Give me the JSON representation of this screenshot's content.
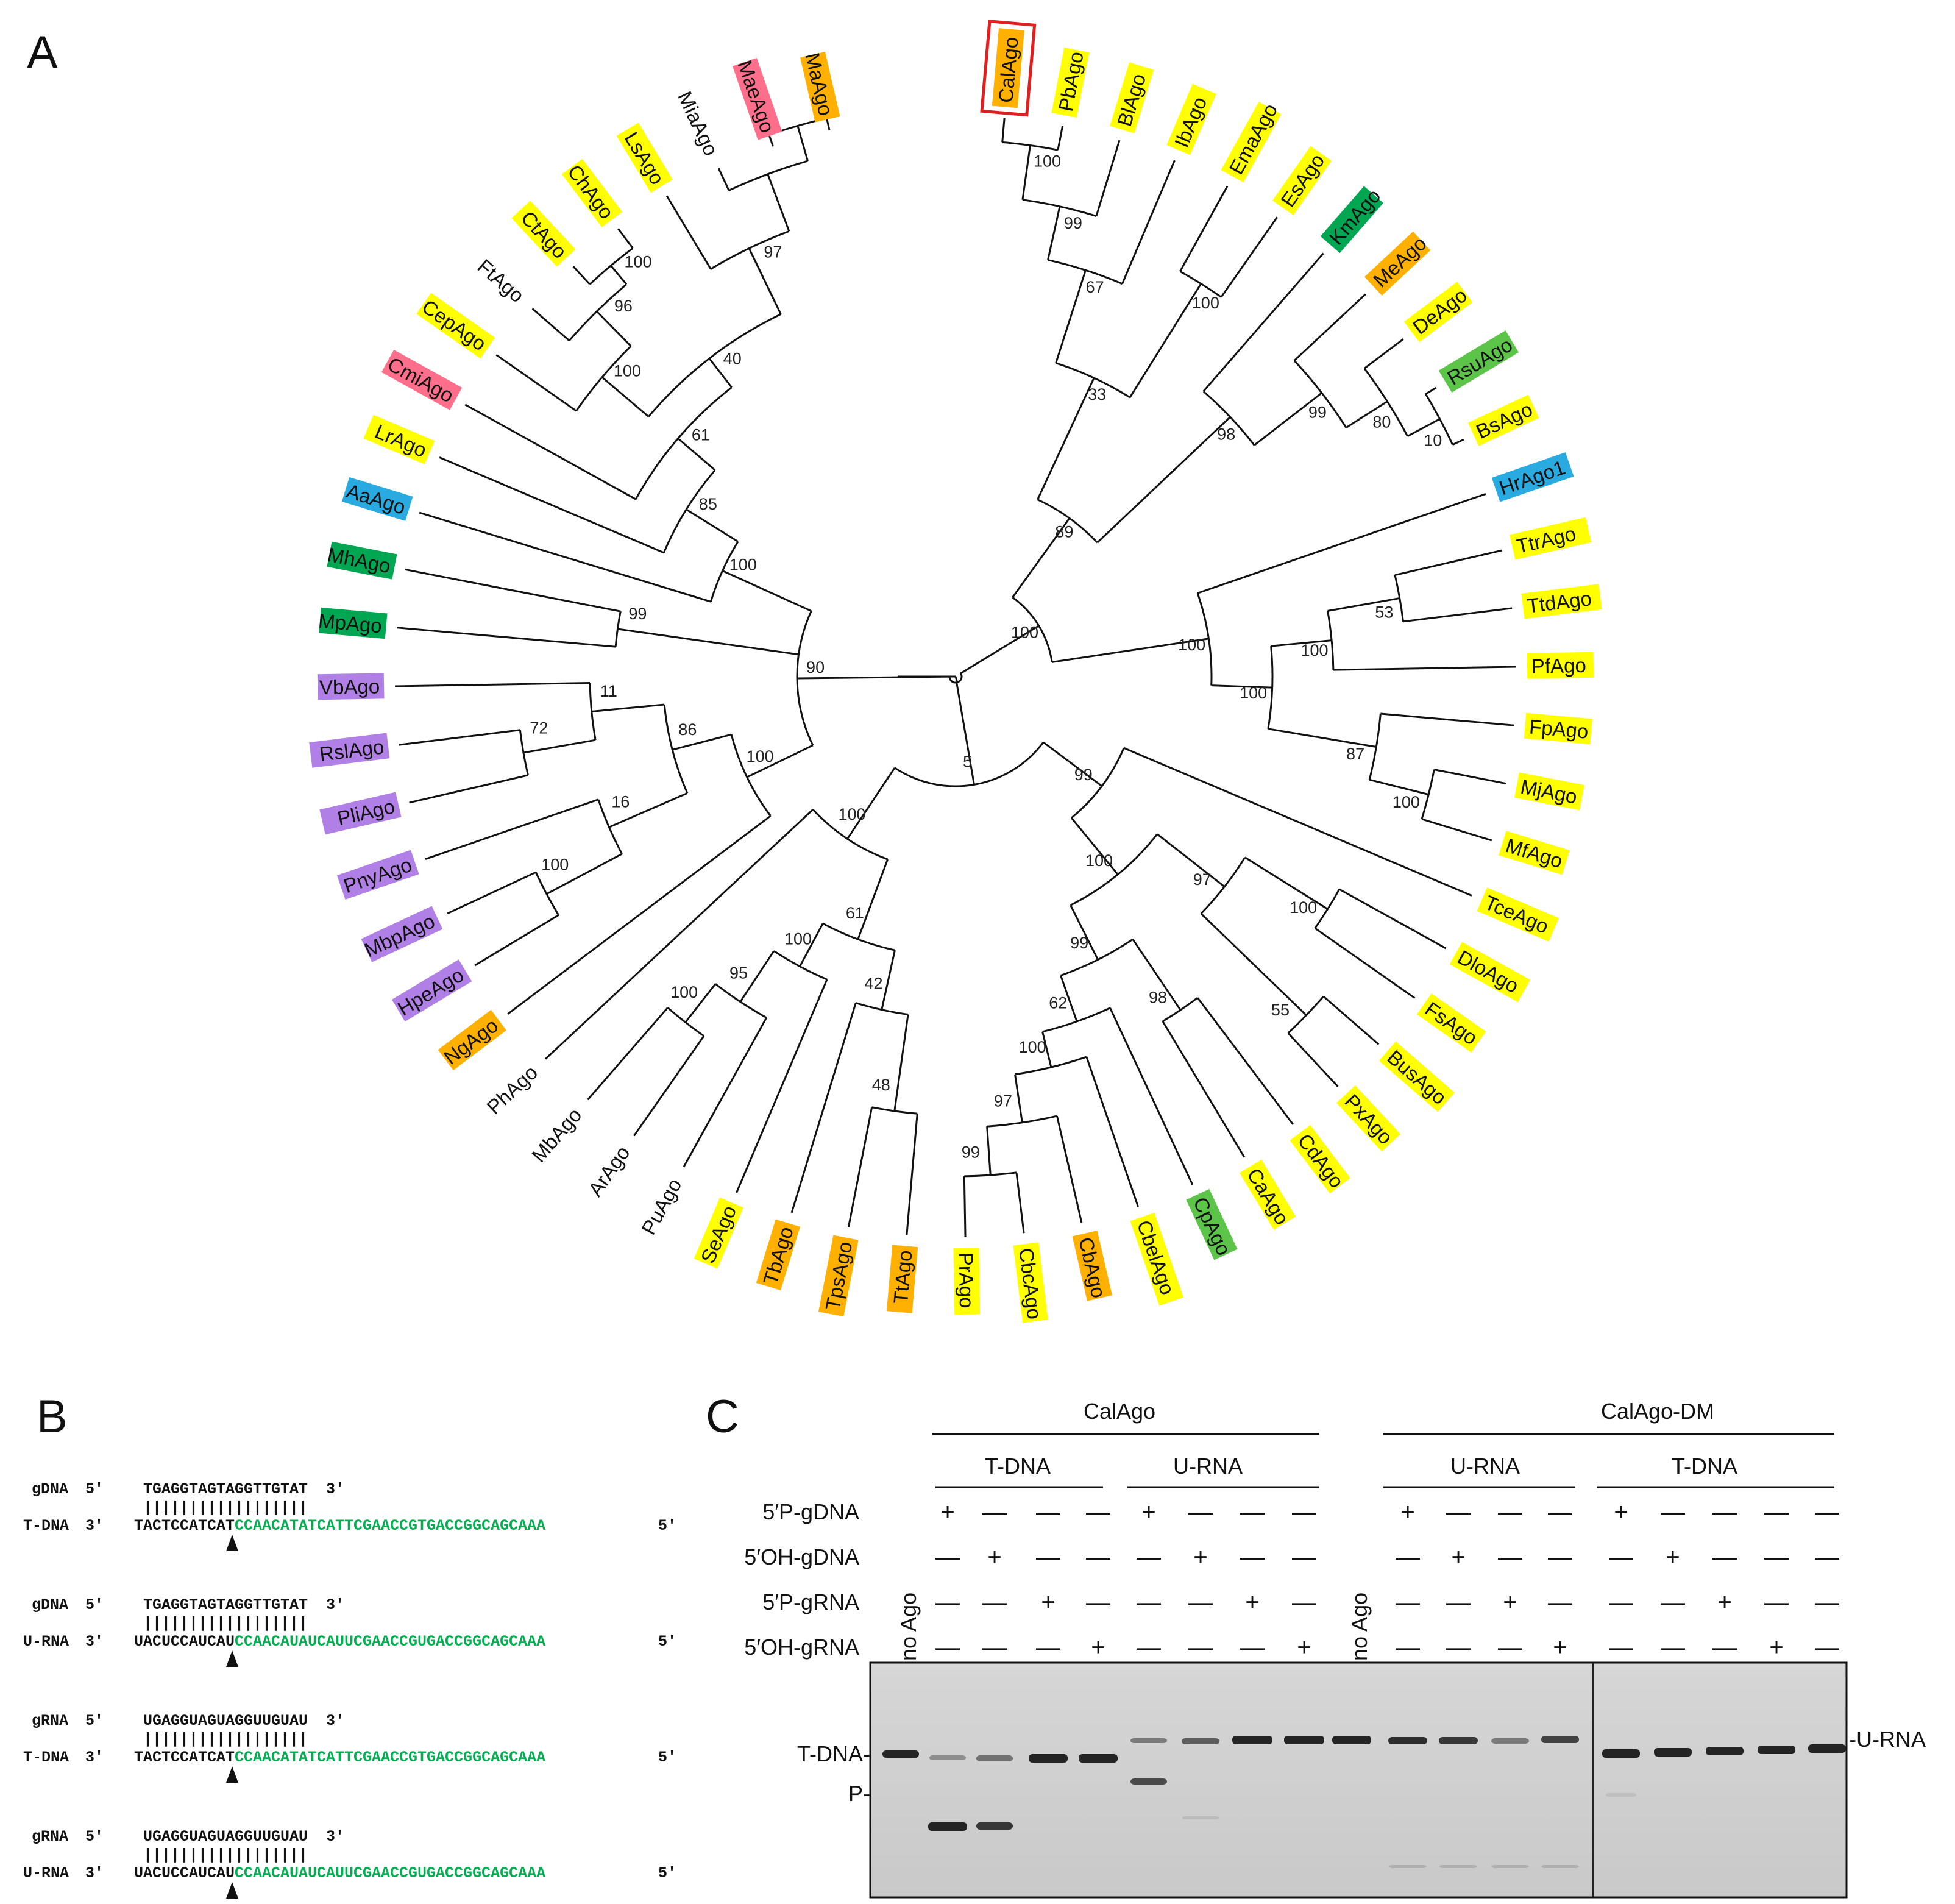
{
  "panels": {
    "a": "A",
    "b": "B",
    "c": "C"
  },
  "colors": {
    "yellow": "#ffff00",
    "orange": "#ffb000",
    "pink": "#ff6e8a",
    "green": "#00a651",
    "lightgreen": "#5cc448",
    "blue": "#29abe2",
    "purple": "#b080e6",
    "highlight_box": "#e02020",
    "seq_green": "#00b050"
  },
  "tree": {
    "highlighted": "CalAgo",
    "leaves": [
      {
        "name": "CalAgo",
        "color": "orange"
      },
      {
        "name": "PbAgo",
        "color": "yellow"
      },
      {
        "name": "BlAgo",
        "color": "yellow"
      },
      {
        "name": "IbAgo",
        "color": "yellow"
      },
      {
        "name": "EmaAgo",
        "color": "yellow"
      },
      {
        "name": "EsAgo",
        "color": "yellow"
      },
      {
        "name": "KmAgo",
        "color": "green"
      },
      {
        "name": "MeAgo",
        "color": "orange"
      },
      {
        "name": "DeAgo",
        "color": "yellow"
      },
      {
        "name": "RsuAgo",
        "color": "lightgreen"
      },
      {
        "name": "BsAgo",
        "color": "yellow"
      },
      {
        "name": "HrAgo1",
        "color": "blue"
      },
      {
        "name": "TtrAgo",
        "color": "yellow"
      },
      {
        "name": "TtdAgo",
        "color": "yellow"
      },
      {
        "name": "PfAgo",
        "color": "yellow"
      },
      {
        "name": "FpAgo",
        "color": "yellow"
      },
      {
        "name": "MjAgo",
        "color": "yellow"
      },
      {
        "name": "MfAgo",
        "color": "yellow"
      },
      {
        "name": "TceAgo",
        "color": "yellow"
      },
      {
        "name": "DloAgo",
        "color": "yellow"
      },
      {
        "name": "FsAgo",
        "color": "yellow"
      },
      {
        "name": "BusAgo",
        "color": "yellow"
      },
      {
        "name": "PxAgo",
        "color": "yellow"
      },
      {
        "name": "CdAgo",
        "color": "yellow"
      },
      {
        "name": "CaAgo",
        "color": "yellow"
      },
      {
        "name": "CpAgo",
        "color": "lightgreen"
      },
      {
        "name": "CbelAgo",
        "color": "yellow"
      },
      {
        "name": "CbAgo",
        "color": "orange"
      },
      {
        "name": "CbcAgo",
        "color": "yellow"
      },
      {
        "name": "PrAgo",
        "color": "yellow"
      },
      {
        "name": "TtAgo",
        "color": "orange"
      },
      {
        "name": "TpsAgo",
        "color": "orange"
      },
      {
        "name": "TbAgo",
        "color": "orange"
      },
      {
        "name": "SeAgo",
        "color": "yellow"
      },
      {
        "name": "PuAgo",
        "color": "none"
      },
      {
        "name": "ArAgo",
        "color": "none"
      },
      {
        "name": "MbAgo",
        "color": "none"
      },
      {
        "name": "PhAgo",
        "color": "none"
      },
      {
        "name": "NgAgo",
        "color": "orange"
      },
      {
        "name": "HpeAgo",
        "color": "purple"
      },
      {
        "name": "MbpAgo",
        "color": "purple"
      },
      {
        "name": "PnyAgo",
        "color": "purple"
      },
      {
        "name": "PliAgo",
        "color": "purple"
      },
      {
        "name": "RslAgo",
        "color": "purple"
      },
      {
        "name": "VbAgo",
        "color": "purple"
      },
      {
        "name": "MpAgo",
        "color": "green"
      },
      {
        "name": "MhAgo",
        "color": "green"
      },
      {
        "name": "AaAgo",
        "color": "blue"
      },
      {
        "name": "LrAgo",
        "color": "yellow"
      },
      {
        "name": "CmiAgo",
        "color": "pink"
      },
      {
        "name": "CepAgo",
        "color": "yellow"
      },
      {
        "name": "FtAgo",
        "color": "none"
      },
      {
        "name": "CtAgo",
        "color": "yellow"
      },
      {
        "name": "ChAgo",
        "color": "yellow"
      },
      {
        "name": "LsAgo",
        "color": "yellow"
      },
      {
        "name": "MiaAgo",
        "color": "none"
      },
      {
        "name": "MaeAgo",
        "color": "pink"
      },
      {
        "name": "MaAgo",
        "color": "orange"
      }
    ],
    "bootstraps": [
      "100",
      "89",
      "33",
      "67",
      "99",
      "100",
      "100",
      "98",
      "99",
      "80",
      "10",
      "100",
      "100",
      "100",
      "53",
      "87",
      "100",
      "5",
      "99",
      "100",
      "97",
      "100",
      "55",
      "99",
      "98",
      "62",
      "100",
      "97",
      "99",
      "100",
      "61",
      "42",
      "48",
      "100",
      "95",
      "100",
      "90",
      "100",
      "86",
      "16",
      "100",
      "11",
      "72",
      "99",
      "100",
      "85",
      "61",
      "40",
      "100",
      "96",
      "100",
      "97"
    ]
  },
  "panel_b": {
    "alignments": [
      {
        "guide_label": "gDNA",
        "target_label": "T-DNA",
        "guide_5": "5′",
        "guide_seq": "TGAGGTAGTAGGTTGTAT",
        "guide_3": "3′",
        "pairs": "||||||||||||||||||",
        "target_3": "3′",
        "target_seq": "TACTCCATCAT",
        "target_green": "CCAACATATCATTCGAACCGTGACCGGCAGCAAA",
        "target_5": "5′"
      },
      {
        "guide_label": "gDNA",
        "target_label": "U-RNA",
        "guide_5": "5′",
        "guide_seq": "TGAGGTAGTAGGTTGTAT",
        "guide_3": "3′",
        "pairs": "||||||||||||||||||",
        "target_3": "3′",
        "target_seq": "UACUCCAUCAU",
        "target_green": "CCAACAUAUCAUUCGAACCGUGACCGGCAGCAAA",
        "target_5": "5′"
      },
      {
        "guide_label": "gRNA",
        "target_label": "T-DNA",
        "guide_5": "5′",
        "guide_seq": "UGAGGUAGUAGGUUGUAU",
        "guide_3": "3′",
        "pairs": "||||||||||||||||||",
        "target_3": "3′",
        "target_seq": "TACTCCATCAT",
        "target_green": "CCAACATATCATTCGAACCGTGACCGGCAGCAAA",
        "target_5": "5′"
      },
      {
        "guide_label": "gRNA",
        "target_label": "U-RNA",
        "guide_5": "5′",
        "guide_seq": "UGAGGUAGUAGGUUGUAU",
        "guide_3": "3′",
        "pairs": "||||||||||||||||||",
        "target_3": "3′",
        "target_seq": "UACUCCAUCAU",
        "target_green": "CCAACAUAUCAUUCGAACCGUGACCGGCAGCAAA",
        "target_5": "5′"
      }
    ]
  },
  "panel_c": {
    "groups": [
      "CalAgo",
      "CalAgo-DM"
    ],
    "subgroups": [
      "T-DNA",
      "U-RNA",
      "U-RNA",
      "T-DNA"
    ],
    "row_labels": [
      "5′P-gDNA",
      "5′OH-gDNA",
      "5′P-gRNA",
      "5′OH-gRNA"
    ],
    "no_ago": "no Ago",
    "plus": "+",
    "minus": "—",
    "lane_label": {
      "t_dna": "T-DNA-",
      "p": "P-",
      "u_rna": "-U-RNA"
    }
  }
}
